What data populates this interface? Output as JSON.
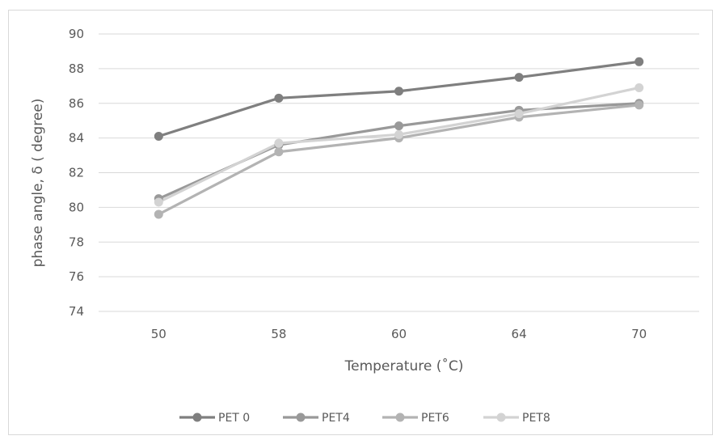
{
  "chart_data": {
    "type": "line",
    "categories": [
      "50",
      "58",
      "60",
      "64",
      "70"
    ],
    "series": [
      {
        "name": "PET 0",
        "values": [
          84.1,
          86.3,
          86.7,
          87.5,
          88.4
        ],
        "color": "#7f7f7f"
      },
      {
        "name": "PET4",
        "values": [
          80.5,
          83.6,
          84.7,
          85.6,
          86.0
        ],
        "color": "#999999"
      },
      {
        "name": "PET6",
        "values": [
          79.6,
          83.2,
          84.0,
          85.2,
          85.9
        ],
        "color": "#b3b3b3"
      },
      {
        "name": "PET8",
        "values": [
          80.3,
          83.7,
          84.2,
          85.4,
          86.9
        ],
        "color": "#d3d3d3"
      }
    ],
    "yticks": [
      "74",
      "76",
      "78",
      "80",
      "82",
      "84",
      "86",
      "88",
      "90"
    ],
    "ylim": [
      74,
      90
    ],
    "xlabel": "Temperature (˚C)",
    "ylabel": "phase angle, δ ( degree)",
    "grid": true,
    "legend_position": "bottom"
  }
}
